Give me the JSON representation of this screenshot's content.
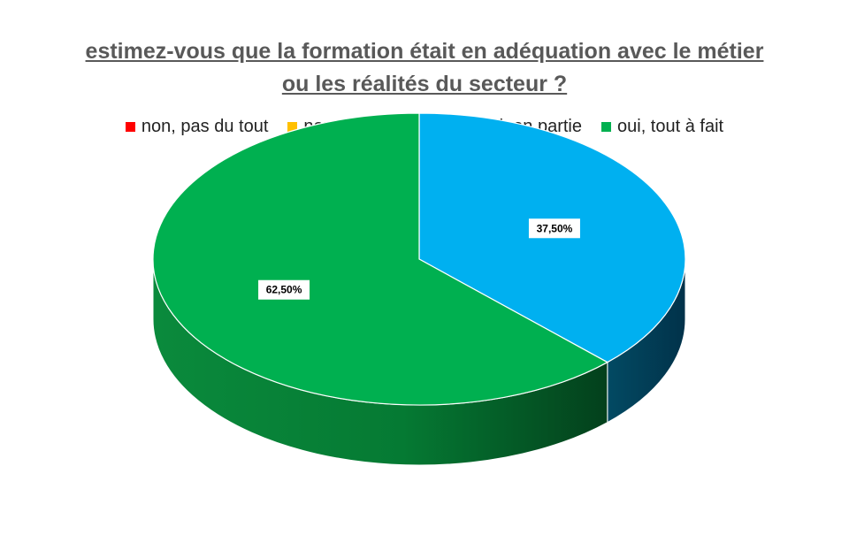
{
  "chart_data": {
    "type": "pie",
    "title_line1": "estimez-vous que la formation était en adéquation avec le métier",
    "title_line2": "ou les réalités du secteur ?",
    "categories": [
      "non, pas du tout",
      "non, pas vraiment",
      "oui, en partie",
      "oui, tout à fait"
    ],
    "values": [
      0,
      0,
      37.5,
      62.5
    ],
    "data_labels": [
      "",
      "",
      "37,50%",
      "62,50%"
    ],
    "colors": [
      "#ff0000",
      "#ffc000",
      "#00b0f0",
      "#00b050"
    ],
    "legend_position": "top",
    "style": "3d"
  }
}
